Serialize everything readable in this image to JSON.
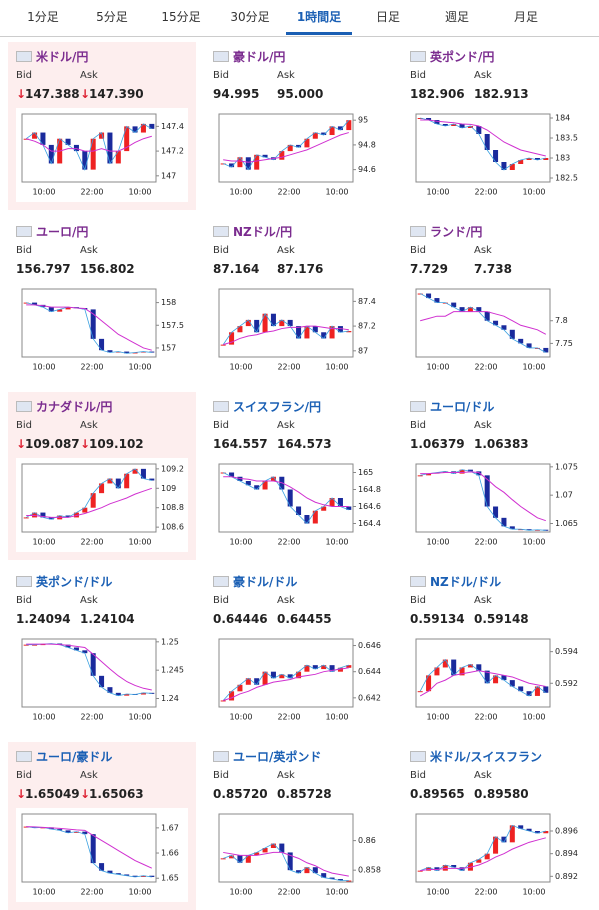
{
  "tabs": [
    "1分足",
    "5分足",
    "15分足",
    "30分足",
    "1時間足",
    "日足",
    "週足",
    "月足"
  ],
  "active_tab": 4,
  "bid_label": "Bid",
  "ask_label": "Ask",
  "cards": [
    {
      "name": "米ドル/円",
      "name_color": "#7b2c8f",
      "highlight": true,
      "arrow": "↓",
      "bid": "147.388",
      "ask": "147.390",
      "chart": {
        "ylim": [
          146.95,
          147.5
        ],
        "yticks": [
          147.4,
          147.2,
          147
        ],
        "xticks": [
          "10:00",
          "22:00",
          "10:00"
        ],
        "closes": [
          147.3,
          147.35,
          147.25,
          147.1,
          147.3,
          147.25,
          147.2,
          147.05,
          147.3,
          147.35,
          147.1,
          147.2,
          147.4,
          147.35,
          147.42,
          147.38
        ],
        "ma": [
          147.3,
          147.28,
          147.25,
          147.2,
          147.2,
          147.22,
          147.22,
          147.2,
          147.2,
          147.22,
          147.2,
          147.2,
          147.23,
          147.27,
          147.3,
          147.32
        ]
      }
    },
    {
      "name": "豪ドル/円",
      "name_color": "#7b2c8f",
      "highlight": false,
      "bid": "94.995",
      "ask": "95.000",
      "chart": {
        "ylim": [
          94.5,
          95.05
        ],
        "yticks": [
          95,
          94.8,
          94.6
        ],
        "xticks": [
          "10:00",
          "22:00",
          "10:00"
        ],
        "closes": [
          94.65,
          94.62,
          94.7,
          94.6,
          94.72,
          94.7,
          94.68,
          94.75,
          94.8,
          94.78,
          94.85,
          94.9,
          94.88,
          94.95,
          94.92,
          95.0
        ],
        "ma": [
          94.68,
          94.67,
          94.67,
          94.66,
          94.67,
          94.68,
          94.69,
          94.7,
          94.72,
          94.74,
          94.76,
          94.79,
          94.82,
          94.85,
          94.88,
          94.9
        ]
      }
    },
    {
      "name": "英ポンド/円",
      "name_color": "#7b2c8f",
      "highlight": false,
      "bid": "182.906",
      "ask": "182.913",
      "chart": {
        "ylim": [
          182.4,
          184.1
        ],
        "yticks": [
          184,
          183.5,
          183,
          182.5
        ],
        "xticks": [
          "10:00",
          "22:00",
          "10:00"
        ],
        "closes": [
          184,
          183.95,
          183.85,
          183.8,
          183.85,
          183.75,
          183.8,
          183.6,
          183.2,
          182.9,
          182.7,
          182.85,
          182.95,
          183.0,
          182.95,
          183.0
        ],
        "ma": [
          183.95,
          183.95,
          183.92,
          183.9,
          183.88,
          183.85,
          183.84,
          183.8,
          183.7,
          183.55,
          183.4,
          183.3,
          183.2,
          183.15,
          183.1,
          183.05
        ]
      }
    },
    {
      "name": "ユーロ/円",
      "name_color": "#7b2c8f",
      "highlight": false,
      "bid": "156.797",
      "ask": "156.802",
      "chart": {
        "ylim": [
          156.8,
          158.3
        ],
        "yticks": [
          158,
          157.5,
          157
        ],
        "xticks": [
          "10:00",
          "22:00",
          "10:00"
        ],
        "closes": [
          158.0,
          157.95,
          157.9,
          157.8,
          157.85,
          157.9,
          157.88,
          157.85,
          157.2,
          156.95,
          156.9,
          156.92,
          156.88,
          156.9,
          156.92,
          156.9
        ],
        "ma": [
          157.95,
          157.95,
          157.93,
          157.9,
          157.9,
          157.9,
          157.88,
          157.87,
          157.75,
          157.6,
          157.45,
          157.3,
          157.2,
          157.1,
          157.0,
          156.95
        ]
      }
    },
    {
      "name": "NZドル/円",
      "name_color": "#7b2c8f",
      "highlight": false,
      "bid": "87.164",
      "ask": "87.176",
      "chart": {
        "ylim": [
          86.95,
          87.5
        ],
        "yticks": [
          87.4,
          87.2,
          87
        ],
        "xticks": [
          "10:00",
          "22:00",
          "10:00"
        ],
        "closes": [
          87.05,
          87.15,
          87.2,
          87.25,
          87.15,
          87.3,
          87.2,
          87.25,
          87.2,
          87.1,
          87.2,
          87.15,
          87.1,
          87.2,
          87.15,
          87.16
        ],
        "ma": [
          87.05,
          87.07,
          87.1,
          87.12,
          87.13,
          87.15,
          87.16,
          87.18,
          87.19,
          87.19,
          87.2,
          87.2,
          87.19,
          87.18,
          87.18,
          87.17
        ]
      }
    },
    {
      "name": "ランド/円",
      "name_color": "#7b2c8f",
      "highlight": false,
      "bid": "7.729",
      "ask": "7.738",
      "chart": {
        "ylim": [
          7.72,
          7.87
        ],
        "yticks": [
          7.8,
          7.75
        ],
        "xticks": [
          "10:00",
          "22:00",
          "10:00"
        ],
        "closes": [
          7.86,
          7.85,
          7.84,
          7.84,
          7.83,
          7.82,
          7.83,
          7.82,
          7.8,
          7.79,
          7.78,
          7.76,
          7.75,
          7.74,
          7.74,
          7.73
        ],
        "ma": [
          7.8,
          7.805,
          7.81,
          7.81,
          7.82,
          7.82,
          7.82,
          7.82,
          7.82,
          7.815,
          7.81,
          7.8,
          7.79,
          7.785,
          7.78,
          7.77
        ]
      }
    },
    {
      "name": "カナダドル/円",
      "name_color": "#7b2c8f",
      "highlight": true,
      "arrow": "↓",
      "bid": "109.087",
      "ask": "109.102",
      "chart": {
        "ylim": [
          108.55,
          109.25
        ],
        "yticks": [
          109.2,
          109,
          108.8,
          108.6
        ],
        "xticks": [
          "10:00",
          "22:00",
          "10:00"
        ],
        "closes": [
          108.7,
          108.75,
          108.7,
          108.68,
          108.72,
          108.7,
          108.75,
          108.8,
          108.95,
          109.05,
          109.1,
          109.0,
          109.15,
          109.2,
          109.1,
          109.08
        ],
        "ma": [
          108.72,
          108.72,
          108.71,
          108.7,
          108.7,
          108.7,
          108.72,
          108.74,
          108.77,
          108.8,
          108.84,
          108.87,
          108.9,
          108.94,
          108.97,
          109.0
        ]
      }
    },
    {
      "name": "スイスフラン/円",
      "name_color": "#1a5fb4",
      "highlight": false,
      "bid": "164.557",
      "ask": "164.573",
      "chart": {
        "ylim": [
          164.3,
          165.1
        ],
        "yticks": [
          165,
          164.8,
          164.6,
          164.4
        ],
        "xticks": [
          "10:00",
          "22:00",
          "10:00"
        ],
        "closes": [
          165.0,
          164.95,
          164.9,
          164.85,
          164.8,
          164.9,
          164.95,
          164.8,
          164.6,
          164.5,
          164.4,
          164.55,
          164.6,
          164.7,
          164.6,
          164.56
        ],
        "ma": [
          164.95,
          164.95,
          164.93,
          164.92,
          164.9,
          164.9,
          164.9,
          164.88,
          164.83,
          164.77,
          164.7,
          164.65,
          164.62,
          164.6,
          164.6,
          164.6
        ]
      }
    },
    {
      "name": "ユーロ/ドル",
      "name_color": "#1a5fb4",
      "highlight": false,
      "bid": "1.06379",
      "ask": "1.06383",
      "chart": {
        "ylim": [
          1.0635,
          1.0755
        ],
        "yticks": [
          1.075,
          1.07,
          1.065
        ],
        "xticks": [
          "10:00",
          "22:00",
          "10:00"
        ],
        "closes": [
          1.0735,
          1.0738,
          1.074,
          1.0742,
          1.0738,
          1.0745,
          1.0742,
          1.0735,
          1.068,
          1.066,
          1.0645,
          1.064,
          1.064,
          1.0638,
          1.0639,
          1.0638
        ],
        "ma": [
          1.0738,
          1.0738,
          1.0739,
          1.074,
          1.074,
          1.074,
          1.0741,
          1.074,
          1.0728,
          1.0715,
          1.0705,
          1.0692,
          1.068,
          1.067,
          1.066,
          1.0655
        ]
      }
    },
    {
      "name": "英ポンド/ドル",
      "name_color": "#1a5fb4",
      "highlight": false,
      "bid": "1.24094",
      "ask": "1.24104",
      "chart": {
        "ylim": [
          1.2385,
          1.2505
        ],
        "yticks": [
          1.25,
          1.245,
          1.24
        ],
        "xticks": [
          "10:00",
          "22:00",
          "10:00"
        ],
        "closes": [
          1.2495,
          1.2495,
          1.2496,
          1.2497,
          1.2495,
          1.249,
          1.2485,
          1.248,
          1.244,
          1.242,
          1.241,
          1.2405,
          1.2408,
          1.2407,
          1.241,
          1.2409
        ],
        "ma": [
          1.2496,
          1.2496,
          1.2496,
          1.2496,
          1.2495,
          1.2494,
          1.2492,
          1.249,
          1.2478,
          1.2465,
          1.2452,
          1.244,
          1.243,
          1.2423,
          1.2418,
          1.2415
        ]
      }
    },
    {
      "name": "豪ドル/ドル",
      "name_color": "#1a5fb4",
      "highlight": false,
      "bid": "0.64446",
      "ask": "0.64455",
      "chart": {
        "ylim": [
          0.6413,
          0.6465
        ],
        "yticks": [
          0.646,
          0.644,
          0.642
        ],
        "xticks": [
          "10:00",
          "22:00",
          "10:00"
        ],
        "closes": [
          0.6418,
          0.6425,
          0.643,
          0.6435,
          0.643,
          0.644,
          0.6435,
          0.6438,
          0.6435,
          0.644,
          0.6445,
          0.6442,
          0.6445,
          0.644,
          0.6443,
          0.6445
        ],
        "ma": [
          0.6418,
          0.642,
          0.6423,
          0.6425,
          0.6428,
          0.643,
          0.6432,
          0.6433,
          0.6434,
          0.6436,
          0.6437,
          0.6438,
          0.644,
          0.6441,
          0.6442,
          0.6443
        ]
      }
    },
    {
      "name": "NZドル/ドル",
      "name_color": "#1a5fb4",
      "highlight": false,
      "bid": "0.59134",
      "ask": "0.59148",
      "chart": {
        "ylim": [
          0.5905,
          0.5948
        ],
        "yticks": [
          0.594,
          0.592
        ],
        "xticks": [
          "10:00",
          "22:00",
          "10:00"
        ],
        "closes": [
          0.5915,
          0.5925,
          0.593,
          0.5935,
          0.5925,
          0.593,
          0.5932,
          0.5928,
          0.592,
          0.5925,
          0.5922,
          0.5918,
          0.5915,
          0.5912,
          0.5918,
          0.5914
        ],
        "ma": [
          0.5912,
          0.5915,
          0.592,
          0.5922,
          0.5925,
          0.5926,
          0.5927,
          0.5928,
          0.5927,
          0.5926,
          0.5925,
          0.5924,
          0.5922,
          0.592,
          0.5919,
          0.5918
        ]
      }
    },
    {
      "name": "ユーロ/豪ドル",
      "name_color": "#1a5fb4",
      "highlight": true,
      "arrow": "↓",
      "bid": "1.65049",
      "ask": "1.65063",
      "chart": {
        "ylim": [
          1.6485,
          1.6755
        ],
        "yticks": [
          1.67,
          1.66,
          1.65
        ],
        "xticks": [
          "10:00",
          "22:00",
          "10:00"
        ],
        "closes": [
          1.6705,
          1.67,
          1.6702,
          1.6695,
          1.669,
          1.668,
          1.6685,
          1.6675,
          1.656,
          1.653,
          1.652,
          1.6515,
          1.651,
          1.6505,
          1.651,
          1.6505
        ],
        "ma": [
          1.6705,
          1.6704,
          1.6702,
          1.67,
          1.6698,
          1.6695,
          1.6692,
          1.669,
          1.667,
          1.665,
          1.663,
          1.661,
          1.659,
          1.657,
          1.6555,
          1.654
        ]
      }
    },
    {
      "name": "ユーロ/英ポンド",
      "name_color": "#1a5fb4",
      "highlight": false,
      "bid": "0.85720",
      "ask": "0.85728",
      "chart": {
        "ylim": [
          0.8572,
          0.8618
        ],
        "yticks": [
          0.86,
          0.858
        ],
        "xticks": [
          "10:00",
          "22:00",
          "10:00"
        ],
        "closes": [
          0.8588,
          0.859,
          0.8585,
          0.859,
          0.8592,
          0.8595,
          0.8598,
          0.8592,
          0.858,
          0.8578,
          0.8582,
          0.8578,
          0.8575,
          0.8574,
          0.8573,
          0.8573
        ],
        "ma": [
          0.8592,
          0.8591,
          0.859,
          0.859,
          0.859,
          0.8591,
          0.8592,
          0.8592,
          0.859,
          0.8588,
          0.8585,
          0.8583,
          0.858,
          0.8578,
          0.8577,
          0.8576
        ]
      }
    },
    {
      "name": "米ドル/スイスフラン",
      "name_color": "#1a5fb4",
      "highlight": false,
      "bid": "0.89565",
      "ask": "0.89580",
      "chart": {
        "ylim": [
          0.8915,
          0.8975
        ],
        "yticks": [
          0.896,
          0.894,
          0.892
        ],
        "xticks": [
          "10:00",
          "22:00",
          "10:00"
        ],
        "closes": [
          0.8925,
          0.8928,
          0.8925,
          0.893,
          0.8928,
          0.8925,
          0.8932,
          0.8935,
          0.894,
          0.8955,
          0.895,
          0.8965,
          0.8962,
          0.896,
          0.8958,
          0.896
        ],
        "ma": [
          0.8925,
          0.8926,
          0.8926,
          0.8927,
          0.8927,
          0.8927,
          0.8928,
          0.893,
          0.8933,
          0.8937,
          0.894,
          0.8944,
          0.8947,
          0.895,
          0.8952,
          0.8954
        ]
      }
    }
  ]
}
